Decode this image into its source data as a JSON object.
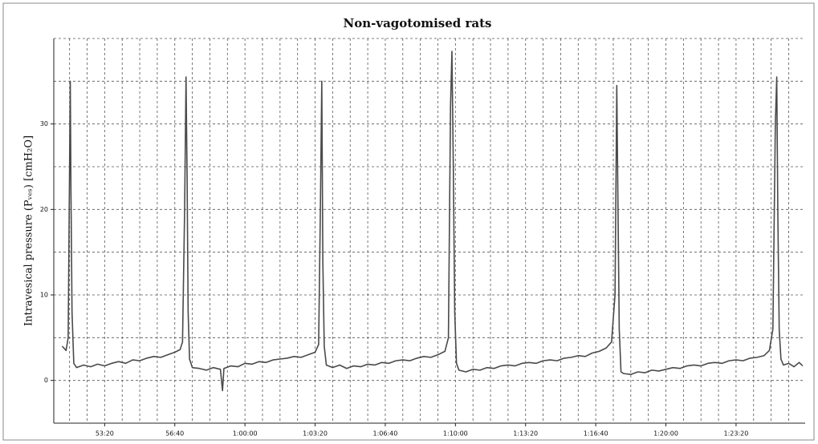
{
  "chart_data": {
    "type": "line",
    "title": "Non-vagotomised rats",
    "y_label": "Intravesical pressure (Pᵥₑₛ) [cmH₂O]",
    "color": "#4a4a4a",
    "grid": true,
    "xlim": [
      3055,
      5197
    ],
    "ylim": [
      -5,
      40
    ],
    "xticks": [
      {
        "value": 3200,
        "label": "53:20"
      },
      {
        "value": 3400,
        "label": "56:40"
      },
      {
        "value": 3600,
        "label": "1:00:00"
      },
      {
        "value": 3800,
        "label": "1:03:20"
      },
      {
        "value": 4000,
        "label": "1:06:40"
      },
      {
        "value": 4200,
        "label": "1:10:00"
      },
      {
        "value": 4400,
        "label": "1:13:20"
      },
      {
        "value": 4600,
        "label": "1:16:40"
      },
      {
        "value": 4800,
        "label": "1:20:00"
      },
      {
        "value": 5000,
        "label": "1:23:20"
      }
    ],
    "yticks": [
      0,
      10,
      20,
      30
    ],
    "minor_xgrid_step": 50,
    "minor_ygrid_step": 5,
    "x": [
      3079,
      3090,
      3096,
      3100,
      3102,
      3104,
      3107,
      3112,
      3120,
      3140,
      3160,
      3180,
      3200,
      3220,
      3240,
      3260,
      3280,
      3300,
      3320,
      3340,
      3360,
      3380,
      3400,
      3415,
      3422,
      3428,
      3432,
      3435,
      3438,
      3442,
      3450,
      3470,
      3490,
      3510,
      3530,
      3536,
      3540,
      3560,
      3580,
      3600,
      3620,
      3640,
      3660,
      3680,
      3700,
      3720,
      3740,
      3760,
      3780,
      3800,
      3810,
      3815,
      3819,
      3822,
      3826,
      3832,
      3850,
      3870,
      3890,
      3910,
      3930,
      3950,
      3970,
      3990,
      4010,
      4030,
      4050,
      4070,
      4090,
      4110,
      4130,
      4150,
      4170,
      4180,
      4186,
      4190,
      4194,
      4198,
      4203,
      4210,
      4230,
      4250,
      4270,
      4290,
      4310,
      4330,
      4350,
      4370,
      4390,
      4410,
      4430,
      4450,
      4470,
      4490,
      4510,
      4530,
      4550,
      4570,
      4590,
      4610,
      4630,
      4645,
      4655,
      4660,
      4663,
      4667,
      4672,
      4680,
      4700,
      4720,
      4740,
      4760,
      4780,
      4800,
      4820,
      4840,
      4860,
      4880,
      4900,
      4920,
      4940,
      4960,
      4980,
      5000,
      5020,
      5040,
      5060,
      5080,
      5095,
      5105,
      5112,
      5116,
      5119,
      5123,
      5128,
      5135,
      5150,
      5165,
      5180,
      5190
    ],
    "values": [
      4,
      3.5,
      5,
      25,
      35,
      22,
      8,
      2,
      1.5,
      1.8,
      1.6,
      1.9,
      1.7,
      2.0,
      2.2,
      2.0,
      2.4,
      2.3,
      2.6,
      2.8,
      2.7,
      3.0,
      3.3,
      3.6,
      4.5,
      20,
      35.5,
      24,
      8,
      2.5,
      1.5,
      1.4,
      1.2,
      1.5,
      1.3,
      -1.2,
      1.4,
      1.7,
      1.6,
      2.0,
      1.9,
      2.2,
      2.1,
      2.4,
      2.5,
      2.6,
      2.8,
      2.7,
      3.0,
      3.3,
      4.2,
      20,
      35,
      14,
      4,
      1.8,
      1.5,
      1.8,
      1.4,
      1.7,
      1.6,
      1.9,
      1.8,
      2.1,
      2.0,
      2.3,
      2.4,
      2.3,
      2.6,
      2.8,
      2.7,
      3.0,
      3.4,
      5,
      32,
      38.5,
      25,
      8,
      2,
      1.2,
      1.0,
      1.3,
      1.2,
      1.5,
      1.4,
      1.7,
      1.8,
      1.7,
      2.0,
      2.1,
      2.0,
      2.3,
      2.4,
      2.3,
      2.6,
      2.7,
      2.9,
      2.8,
      3.2,
      3.4,
      3.8,
      4.5,
      10,
      34.5,
      22,
      6,
      1.0,
      0.8,
      0.7,
      1.0,
      0.9,
      1.2,
      1.1,
      1.3,
      1.5,
      1.4,
      1.7,
      1.8,
      1.7,
      2.0,
      2.1,
      2.0,
      2.3,
      2.4,
      2.3,
      2.6,
      2.7,
      2.9,
      3.5,
      6,
      30,
      35.5,
      20,
      6,
      2.5,
      1.8,
      2.0,
      1.6,
      2.1,
      1.7
    ]
  }
}
